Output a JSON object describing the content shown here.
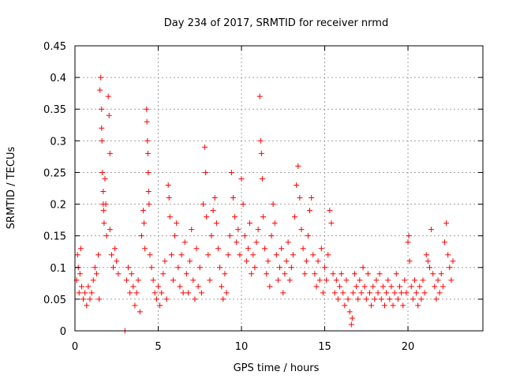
{
  "chart_data": {
    "type": "scatter",
    "title": "Day 234 of 2017, SRMTID for receiver nrmd",
    "xlabel": "GPS time / hours",
    "ylabel": "SRMTID / TECUs",
    "xlim": [
      0,
      24.5
    ],
    "ylim": [
      0,
      0.45
    ],
    "xticks": [
      0,
      5,
      10,
      15,
      20
    ],
    "yticks": [
      0,
      0.05,
      0.1,
      0.15,
      0.2,
      0.25,
      0.3,
      0.35,
      0.4,
      0.45
    ],
    "xtick_labels": [
      "0",
      "5",
      "10",
      "15",
      "20"
    ],
    "ytick_labels": [
      "0",
      "0.05",
      "0.1",
      "0.15",
      "0.2",
      "0.25",
      "0.3",
      "0.35",
      "0.4",
      "0.45"
    ],
    "grid": true,
    "marker": "plus",
    "color": "#ff0000",
    "series": [
      {
        "name": "SRMTID",
        "points": [
          [
            0.1,
            0.08
          ],
          [
            0.15,
            0.12
          ],
          [
            0.2,
            0.1
          ],
          [
            0.25,
            0.06
          ],
          [
            0.3,
            0.09
          ],
          [
            0.35,
            0.13
          ],
          [
            0.4,
            0.07
          ],
          [
            0.5,
            0.05
          ],
          [
            0.6,
            0.06
          ],
          [
            0.7,
            0.04
          ],
          [
            0.8,
            0.07
          ],
          [
            0.9,
            0.05
          ],
          [
            1.0,
            0.06
          ],
          [
            1.1,
            0.08
          ],
          [
            1.2,
            0.1
          ],
          [
            1.3,
            0.09
          ],
          [
            1.4,
            0.12
          ],
          [
            1.45,
            0.05
          ],
          [
            1.5,
            0.38
          ],
          [
            1.55,
            0.4
          ],
          [
            1.6,
            0.35
          ],
          [
            1.6,
            0.32
          ],
          [
            1.62,
            0.3
          ],
          [
            1.65,
            0.25
          ],
          [
            1.7,
            0.22
          ],
          [
            1.7,
            0.2
          ],
          [
            1.72,
            0.19
          ],
          [
            1.75,
            0.17
          ],
          [
            1.8,
            0.24
          ],
          [
            1.85,
            0.2
          ],
          [
            1.9,
            0.15
          ],
          [
            2.0,
            0.37
          ],
          [
            2.05,
            0.34
          ],
          [
            2.1,
            0.28
          ],
          [
            2.1,
            0.16
          ],
          [
            2.2,
            0.12
          ],
          [
            2.3,
            0.1
          ],
          [
            2.4,
            0.13
          ],
          [
            2.5,
            0.11
          ],
          [
            2.6,
            0.09
          ],
          [
            3.0,
            0.0
          ],
          [
            3.1,
            0.08
          ],
          [
            3.2,
            0.1
          ],
          [
            3.3,
            0.06
          ],
          [
            3.4,
            0.09
          ],
          [
            3.5,
            0.07
          ],
          [
            3.6,
            0.04
          ],
          [
            3.7,
            0.06
          ],
          [
            3.8,
            0.08
          ],
          [
            3.9,
            0.03
          ],
          [
            4.0,
            0.15
          ],
          [
            4.1,
            0.19
          ],
          [
            4.15,
            0.17
          ],
          [
            4.2,
            0.13
          ],
          [
            4.3,
            0.35
          ],
          [
            4.32,
            0.33
          ],
          [
            4.35,
            0.3
          ],
          [
            4.38,
            0.28
          ],
          [
            4.4,
            0.25
          ],
          [
            4.42,
            0.22
          ],
          [
            4.45,
            0.2
          ],
          [
            4.5,
            0.12
          ],
          [
            4.6,
            0.1
          ],
          [
            4.7,
            0.08
          ],
          [
            4.8,
            0.06
          ],
          [
            4.9,
            0.05
          ],
          [
            5.0,
            0.07
          ],
          [
            5.1,
            0.04
          ],
          [
            5.2,
            0.06
          ],
          [
            5.3,
            0.09
          ],
          [
            5.4,
            0.11
          ],
          [
            5.5,
            0.05
          ],
          [
            5.6,
            0.23
          ],
          [
            5.65,
            0.21
          ],
          [
            5.7,
            0.18
          ],
          [
            5.8,
            0.12
          ],
          [
            5.9,
            0.08
          ],
          [
            6.0,
            0.15
          ],
          [
            6.1,
            0.17
          ],
          [
            6.2,
            0.1
          ],
          [
            6.3,
            0.07
          ],
          [
            6.4,
            0.12
          ],
          [
            6.5,
            0.06
          ],
          [
            6.6,
            0.14
          ],
          [
            6.7,
            0.09
          ],
          [
            6.8,
            0.06
          ],
          [
            6.9,
            0.11
          ],
          [
            7.0,
            0.16
          ],
          [
            7.1,
            0.08
          ],
          [
            7.2,
            0.05
          ],
          [
            7.3,
            0.13
          ],
          [
            7.4,
            0.07
          ],
          [
            7.5,
            0.1
          ],
          [
            7.6,
            0.06
          ],
          [
            7.7,
            0.2
          ],
          [
            7.8,
            0.29
          ],
          [
            7.85,
            0.25
          ],
          [
            7.9,
            0.18
          ],
          [
            8.0,
            0.12
          ],
          [
            8.1,
            0.08
          ],
          [
            8.2,
            0.15
          ],
          [
            8.3,
            0.19
          ],
          [
            8.4,
            0.21
          ],
          [
            8.5,
            0.17
          ],
          [
            8.6,
            0.13
          ],
          [
            8.7,
            0.1
          ],
          [
            8.8,
            0.07
          ],
          [
            8.9,
            0.05
          ],
          [
            9.0,
            0.09
          ],
          [
            9.1,
            0.06
          ],
          [
            9.2,
            0.12
          ],
          [
            9.3,
            0.15
          ],
          [
            9.4,
            0.25
          ],
          [
            9.5,
            0.21
          ],
          [
            9.6,
            0.18
          ],
          [
            9.7,
            0.14
          ],
          [
            9.8,
            0.16
          ],
          [
            9.9,
            0.12
          ],
          [
            10.0,
            0.24
          ],
          [
            10.1,
            0.2
          ],
          [
            10.2,
            0.15
          ],
          [
            10.3,
            0.11
          ],
          [
            10.4,
            0.13
          ],
          [
            10.5,
            0.17
          ],
          [
            10.6,
            0.09
          ],
          [
            10.7,
            0.12
          ],
          [
            10.8,
            0.1
          ],
          [
            10.9,
            0.14
          ],
          [
            11.0,
            0.16
          ],
          [
            11.1,
            0.37
          ],
          [
            11.15,
            0.3
          ],
          [
            11.2,
            0.28
          ],
          [
            11.25,
            0.24
          ],
          [
            11.3,
            0.18
          ],
          [
            11.4,
            0.13
          ],
          [
            11.5,
            0.09
          ],
          [
            11.6,
            0.11
          ],
          [
            11.7,
            0.07
          ],
          [
            11.8,
            0.15
          ],
          [
            11.9,
            0.2
          ],
          [
            12.0,
            0.17
          ],
          [
            12.1,
            0.12
          ],
          [
            12.2,
            0.08
          ],
          [
            12.3,
            0.1
          ],
          [
            12.4,
            0.13
          ],
          [
            12.5,
            0.06
          ],
          [
            12.6,
            0.09
          ],
          [
            12.7,
            0.11
          ],
          [
            12.8,
            0.14
          ],
          [
            12.9,
            0.08
          ],
          [
            13.0,
            0.1
          ],
          [
            13.1,
            0.12
          ],
          [
            13.2,
            0.18
          ],
          [
            13.3,
            0.23
          ],
          [
            13.4,
            0.26
          ],
          [
            13.5,
            0.21
          ],
          [
            13.6,
            0.16
          ],
          [
            13.7,
            0.13
          ],
          [
            13.8,
            0.09
          ],
          [
            13.9,
            0.11
          ],
          [
            14.0,
            0.15
          ],
          [
            14.1,
            0.19
          ],
          [
            14.2,
            0.21
          ],
          [
            14.3,
            0.12
          ],
          [
            14.4,
            0.09
          ],
          [
            14.5,
            0.07
          ],
          [
            14.6,
            0.11
          ],
          [
            14.7,
            0.08
          ],
          [
            14.8,
            0.13
          ],
          [
            14.9,
            0.06
          ],
          [
            15.0,
            0.1
          ],
          [
            15.1,
            0.08
          ],
          [
            15.2,
            0.12
          ],
          [
            15.3,
            0.19
          ],
          [
            15.4,
            0.17
          ],
          [
            15.5,
            0.09
          ],
          [
            15.6,
            0.06
          ],
          [
            15.7,
            0.08
          ],
          [
            15.8,
            0.05
          ],
          [
            15.9,
            0.07
          ],
          [
            16.0,
            0.09
          ],
          [
            16.1,
            0.06
          ],
          [
            16.2,
            0.04
          ],
          [
            16.3,
            0.08
          ],
          [
            16.4,
            0.05
          ],
          [
            16.5,
            0.03
          ],
          [
            16.6,
            0.01
          ],
          [
            16.65,
            0.02
          ],
          [
            16.7,
            0.06
          ],
          [
            16.8,
            0.09
          ],
          [
            16.9,
            0.07
          ],
          [
            17.0,
            0.05
          ],
          [
            17.1,
            0.08
          ],
          [
            17.2,
            0.06
          ],
          [
            17.3,
            0.1
          ],
          [
            17.4,
            0.07
          ],
          [
            17.5,
            0.05
          ],
          [
            17.6,
            0.09
          ],
          [
            17.7,
            0.06
          ],
          [
            17.8,
            0.04
          ],
          [
            17.9,
            0.07
          ],
          [
            18.0,
            0.05
          ],
          [
            18.1,
            0.08
          ],
          [
            18.2,
            0.06
          ],
          [
            18.3,
            0.09
          ],
          [
            18.4,
            0.05
          ],
          [
            18.5,
            0.07
          ],
          [
            18.6,
            0.04
          ],
          [
            18.7,
            0.06
          ],
          [
            18.8,
            0.08
          ],
          [
            18.9,
            0.05
          ],
          [
            19.0,
            0.07
          ],
          [
            19.1,
            0.04
          ],
          [
            19.2,
            0.06
          ],
          [
            19.3,
            0.09
          ],
          [
            19.4,
            0.05
          ],
          [
            19.5,
            0.07
          ],
          [
            19.6,
            0.06
          ],
          [
            19.7,
            0.04
          ],
          [
            19.8,
            0.08
          ],
          [
            19.9,
            0.06
          ],
          [
            20.0,
            0.14
          ],
          [
            20.05,
            0.15
          ],
          [
            20.1,
            0.11
          ],
          [
            20.2,
            0.07
          ],
          [
            20.3,
            0.05
          ],
          [
            20.4,
            0.08
          ],
          [
            20.5,
            0.06
          ],
          [
            20.6,
            0.04
          ],
          [
            20.7,
            0.07
          ],
          [
            20.8,
            0.05
          ],
          [
            20.9,
            0.08
          ],
          [
            21.0,
            0.06
          ],
          [
            21.1,
            0.12
          ],
          [
            21.2,
            0.11
          ],
          [
            21.3,
            0.1
          ],
          [
            21.4,
            0.16
          ],
          [
            21.5,
            0.09
          ],
          [
            21.6,
            0.07
          ],
          [
            21.7,
            0.05
          ],
          [
            21.8,
            0.08
          ],
          [
            21.9,
            0.06
          ],
          [
            22.0,
            0.09
          ],
          [
            22.1,
            0.07
          ],
          [
            22.2,
            0.14
          ],
          [
            22.3,
            0.17
          ],
          [
            22.4,
            0.12
          ],
          [
            22.5,
            0.1
          ],
          [
            22.6,
            0.08
          ],
          [
            22.7,
            0.11
          ]
        ]
      }
    ]
  }
}
